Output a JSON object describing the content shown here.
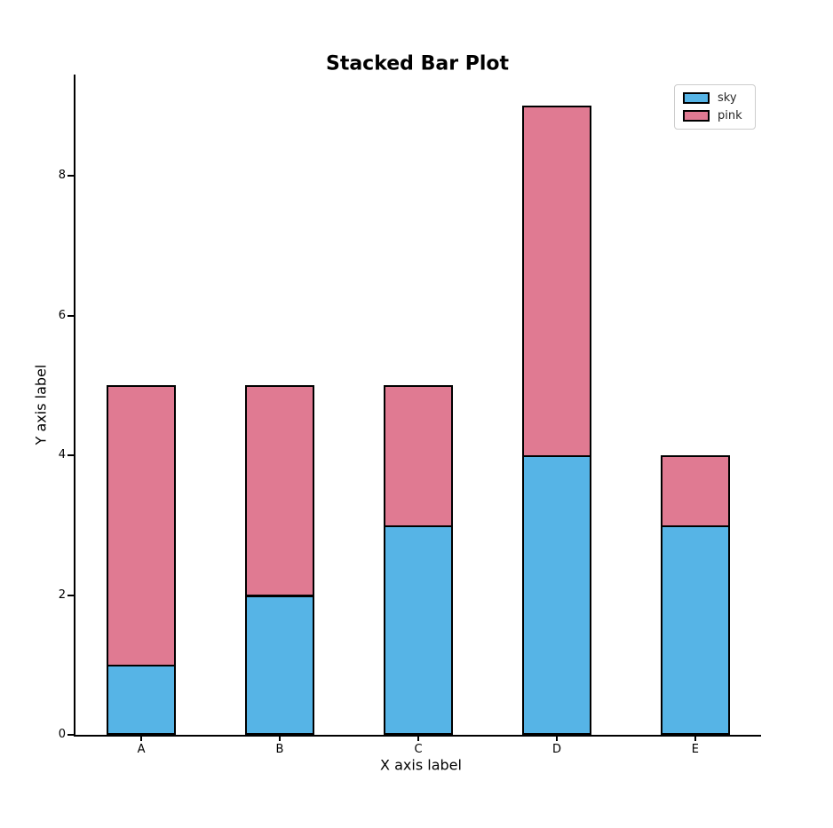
{
  "figure": {
    "background": "#ffffff"
  },
  "chart_data": {
    "type": "bar",
    "stacked": true,
    "title": "Stacked Bar Plot",
    "xlabel": "X axis label",
    "ylabel": "Y axis label",
    "categories": [
      "A",
      "B",
      "C",
      "D",
      "E"
    ],
    "series": [
      {
        "name": "sky",
        "color": "#56b4e6",
        "values": [
          1,
          2,
          3,
          4,
          3
        ]
      },
      {
        "name": "pink",
        "color": "#e07a92",
        "values": [
          4,
          3,
          2,
          5,
          1
        ]
      }
    ],
    "stack_totals": [
      5,
      5,
      5,
      9,
      4
    ],
    "ylim": [
      0,
      9.45
    ],
    "yticks": [
      0,
      2,
      4,
      6,
      8
    ],
    "bar_edge_color": "#000000",
    "bar_width_fraction": 0.5,
    "legend_position": "upper right",
    "legend_labels": [
      "sky",
      "pink"
    ],
    "grid": false
  }
}
